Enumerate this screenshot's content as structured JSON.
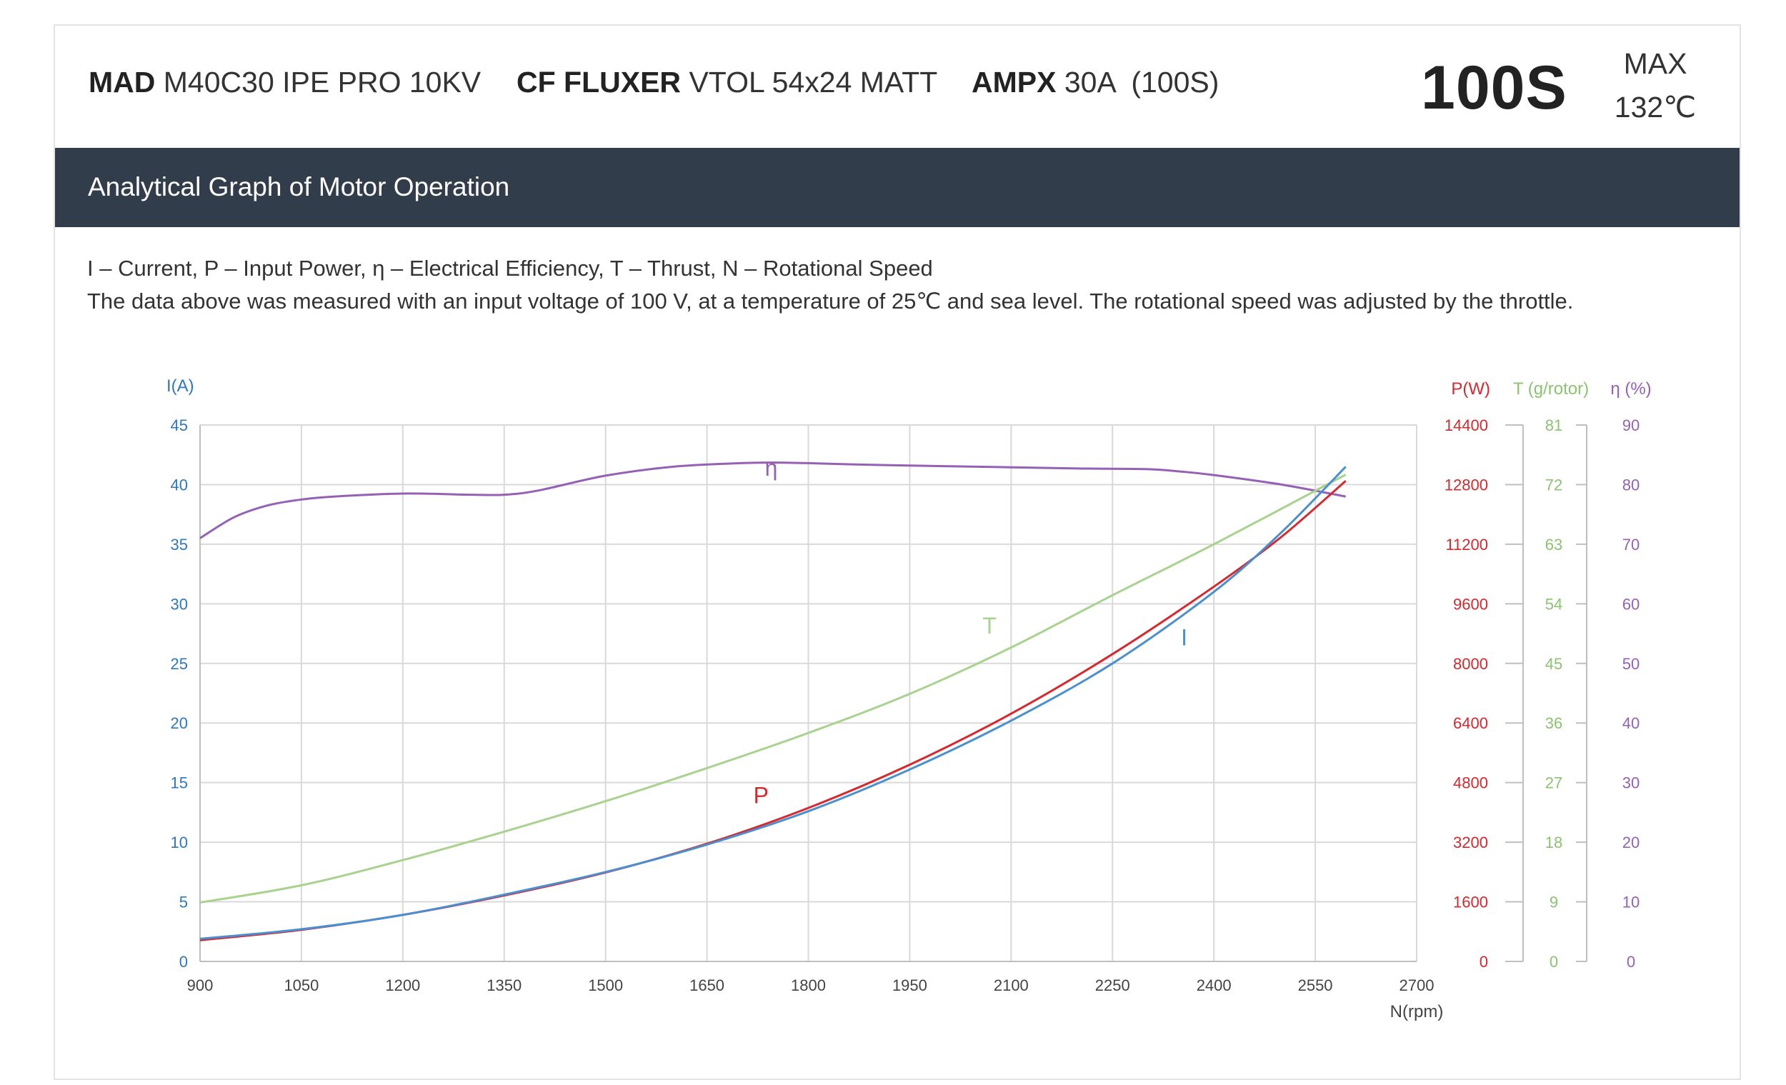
{
  "header": {
    "specs": [
      {
        "brand": "MAD",
        "model": "M40C30 IPE PRO 10KV"
      },
      {
        "brand": "CF FLUXER",
        "model": "VTOL 54x24 MATT"
      },
      {
        "brand": "AMPX",
        "model": "30A  (100S)"
      }
    ],
    "voltage_badge": "100S",
    "max_label": "MAX",
    "max_temp": "132℃"
  },
  "band": {
    "title": "Analytical Graph of Motor Operation"
  },
  "notes": {
    "legend": "I – Current, P – Input Power, η – Electrical Efficiency, T – Thrust,   N – Rotational Speed",
    "conditions": "The data above was measured with an input voltage of 100 V, at a temperature of 25℃ and sea level. The rotational speed was adjusted by the throttle."
  },
  "colors": {
    "current": "#4a8fd0",
    "power": "#d8282d",
    "thrust": "#a7d38e",
    "efficiency": "#9561b5",
    "grid": "#d9d9d9",
    "axis": "#bfbfbf",
    "tick": "#555555"
  },
  "chart_data": {
    "type": "line",
    "xlabel": "N(rpm)",
    "xlim": [
      900,
      2700
    ],
    "x_ticks": [
      900,
      1050,
      1200,
      1350,
      1500,
      1650,
      1800,
      1950,
      2100,
      2250,
      2400,
      2550,
      2700
    ],
    "axes": {
      "I": {
        "label": "I(A)",
        "lim": [
          0,
          45
        ],
        "ticks": [
          0,
          5,
          10,
          15,
          20,
          25,
          30,
          35,
          40,
          45
        ]
      },
      "P": {
        "label": "P(W)",
        "lim": [
          0,
          14400
        ],
        "ticks": [
          0,
          1600,
          3200,
          4800,
          6400,
          8000,
          9600,
          11200,
          12800,
          14400
        ]
      },
      "T": {
        "label": "T (g/rotor)",
        "lim": [
          0,
          81
        ],
        "ticks": [
          0,
          9,
          18,
          27,
          36,
          45,
          54,
          63,
          72,
          81
        ]
      },
      "eta": {
        "label": "η (%)",
        "lim": [
          0,
          90
        ],
        "ticks": [
          0,
          10,
          20,
          30,
          40,
          50,
          60,
          70,
          80,
          90
        ]
      }
    },
    "grid": true,
    "series": [
      {
        "name": "η",
        "axis": "eta",
        "color_key": "efficiency",
        "x": [
          900,
          950,
          1000,
          1050,
          1100,
          1200,
          1300,
          1350,
          1400,
          1500,
          1600,
          1700,
          1750,
          1800,
          1900,
          2000,
          2100,
          2200,
          2300,
          2350,
          2400,
          2500,
          2595
        ],
        "y": [
          71.0,
          74.5,
          76.5,
          77.5,
          78.0,
          78.5,
          78.3,
          78.3,
          79.0,
          81.5,
          83.0,
          83.6,
          83.7,
          83.6,
          83.3,
          83.1,
          82.9,
          82.7,
          82.6,
          82.2,
          81.6,
          80.0,
          78.0
        ]
      },
      {
        "name": "T",
        "axis": "T",
        "color_key": "thrust",
        "x": [
          900,
          1050,
          1200,
          1350,
          1500,
          1650,
          1800,
          1950,
          2100,
          2250,
          2400,
          2595
        ],
        "y": [
          8.9,
          11.5,
          15.3,
          19.6,
          24.2,
          29.2,
          34.5,
          40.4,
          47.4,
          55.3,
          63.0,
          73.5
        ]
      },
      {
        "name": "P",
        "axis": "P",
        "color_key": "power",
        "x": [
          900,
          1050,
          1200,
          1350,
          1500,
          1650,
          1800,
          1950,
          2100,
          2250,
          2400,
          2500,
          2595
        ],
        "y": [
          570,
          850,
          1250,
          1770,
          2390,
          3160,
          4120,
          5280,
          6650,
          8250,
          10060,
          11400,
          12900
        ]
      },
      {
        "name": "I",
        "axis": "I",
        "color_key": "current",
        "x": [
          900,
          1050,
          1200,
          1350,
          1500,
          1650,
          1800,
          1950,
          2100,
          2250,
          2400,
          2500,
          2595
        ],
        "y": [
          1.9,
          2.7,
          3.9,
          5.6,
          7.5,
          9.8,
          12.6,
          16.1,
          20.2,
          25.0,
          31.0,
          36.0,
          41.5
        ]
      }
    ],
    "annotations": [
      {
        "text": "η",
        "x": 1745,
        "axis": "eta",
        "y": 81.5,
        "color_key": "efficiency"
      },
      {
        "text": "T",
        "x": 2068,
        "axis": "T",
        "y": 49.5,
        "color_key": "thrust"
      },
      {
        "text": "P",
        "x": 1730,
        "axis": "P",
        "y": 4250,
        "color_key": "power"
      },
      {
        "text": "I",
        "x": 2356,
        "axis": "I",
        "y": 26.5,
        "color_key": "current"
      }
    ]
  }
}
